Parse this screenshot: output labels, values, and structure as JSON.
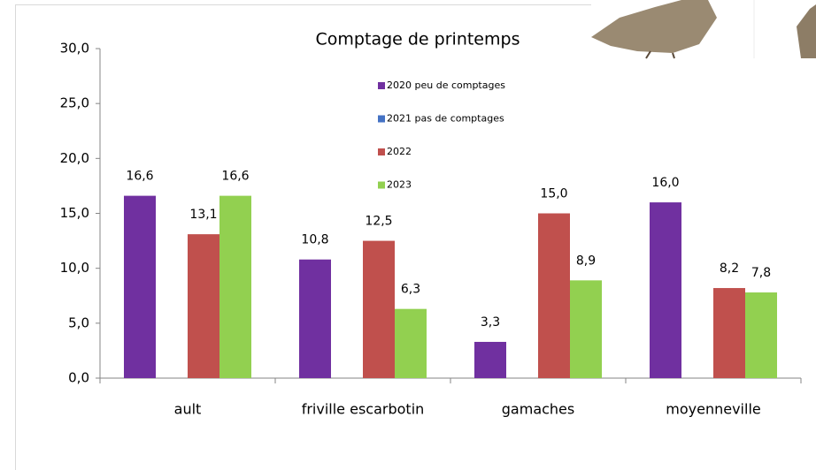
{
  "chart_data": {
    "type": "bar",
    "title": "Comptage de printemps",
    "categories": [
      "ault",
      "friville escarbotin",
      "gamaches",
      "moyenneville"
    ],
    "series": [
      {
        "name": "2020 peu de comptages",
        "color": "#7030a0",
        "values": [
          16.6,
          10.8,
          3.3,
          16.0
        ],
        "value_labels": [
          "16,6",
          "10,8",
          "3,3",
          "16,0"
        ]
      },
      {
        "name": "2021 pas de comptages",
        "color": "#4472c4",
        "values": [
          null,
          null,
          null,
          null
        ]
      },
      {
        "name": "2022",
        "color": "#c0504d",
        "values": [
          13.1,
          12.5,
          15.0,
          8.2
        ],
        "value_labels": [
          "13,1",
          "12,5",
          "15,0",
          "8,2"
        ]
      },
      {
        "name": "2023",
        "color": "#92d050",
        "values": [
          16.6,
          6.3,
          8.9,
          7.8
        ],
        "value_labels": [
          "16,6",
          "6,3",
          "8,9",
          "7,8"
        ]
      }
    ],
    "ylim": [
      0,
      30
    ],
    "yticks": [
      {
        "value": 0,
        "label": "0,0"
      },
      {
        "value": 5,
        "label": "5,0"
      },
      {
        "value": 10,
        "label": "10,0"
      },
      {
        "value": 15,
        "label": "15,0"
      },
      {
        "value": 20,
        "label": "20,0"
      },
      {
        "value": 25,
        "label": "25,0"
      },
      {
        "value": 30,
        "label": "30,0"
      }
    ],
    "grid": false
  }
}
